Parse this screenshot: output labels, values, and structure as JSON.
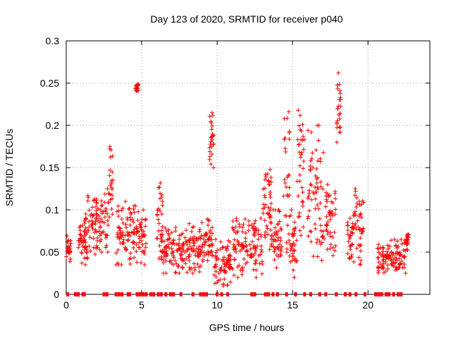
{
  "chart_data": {
    "type": "scatter",
    "title": "Day 123 of 2020, SRMTID for receiver p040",
    "xlabel": "GPS time / hours",
    "ylabel": "SRMTID / TECUs",
    "xlim": [
      0,
      24.1
    ],
    "ylim": [
      0,
      0.3
    ],
    "x_ticks": [
      0,
      5,
      10,
      15,
      20
    ],
    "x_tick_labels": [
      "0",
      "5",
      "10",
      "15",
      "20"
    ],
    "y_ticks": [
      0,
      0.05,
      0.1,
      0.15,
      0.2,
      0.25,
      0.3
    ],
    "y_tick_labels": [
      "0",
      "0.05",
      "0.1",
      "0.15",
      "0.2",
      "0.25",
      "0.3"
    ],
    "grid": true,
    "legend": "none",
    "marker": "plus",
    "color": "#ff0000",
    "clusters": [
      {
        "x": [
          0.0,
          0.3
        ],
        "y_range": [
          0.035,
          0.075
        ]
      },
      {
        "x": [
          0.8,
          1.4
        ],
        "y_range": [
          0.035,
          0.09
        ]
      },
      {
        "x": [
          1.2,
          2.0
        ],
        "y_range": [
          0.04,
          0.125
        ]
      },
      {
        "x": [
          2.0,
          2.8
        ],
        "y_range": [
          0.05,
          0.125
        ]
      },
      {
        "x": [
          2.8,
          3.1
        ],
        "y_range": [
          0.08,
          0.183
        ]
      },
      {
        "x": [
          3.3,
          4.6
        ],
        "y_range": [
          0.035,
          0.11
        ]
      },
      {
        "x": [
          4.6,
          4.8
        ],
        "y_range": [
          0.24,
          0.249
        ]
      },
      {
        "x": [
          4.6,
          5.3
        ],
        "y_range": [
          0.035,
          0.1
        ]
      },
      {
        "x": [
          6.0,
          6.4
        ],
        "y_range": [
          0.04,
          0.14
        ]
      },
      {
        "x": [
          6.3,
          8.0
        ],
        "y_range": [
          0.025,
          0.08
        ]
      },
      {
        "x": [
          8.0,
          9.2
        ],
        "y_range": [
          0.025,
          0.085
        ]
      },
      {
        "x": [
          9.2,
          9.7
        ],
        "y_range": [
          0.04,
          0.09
        ]
      },
      {
        "x": [
          9.5,
          9.8
        ],
        "y_range": [
          0.15,
          0.215
        ]
      },
      {
        "x": [
          9.8,
          11.0
        ],
        "y_range": [
          0.01,
          0.065
        ]
      },
      {
        "x": [
          11.0,
          13.0
        ],
        "y_range": [
          0.02,
          0.09
        ]
      },
      {
        "x": [
          13.0,
          13.6
        ],
        "y_range": [
          0.05,
          0.155
        ]
      },
      {
        "x": [
          13.5,
          14.3
        ],
        "y_range": [
          0.03,
          0.1
        ]
      },
      {
        "x": [
          14.4,
          14.8
        ],
        "y_range": [
          0.04,
          0.216
        ]
      },
      {
        "x": [
          14.8,
          15.3
        ],
        "y_range": [
          0.02,
          0.1
        ]
      },
      {
        "x": [
          15.3,
          15.8
        ],
        "y_range": [
          0.06,
          0.228
        ]
      },
      {
        "x": [
          16.0,
          17.1
        ],
        "y_range": [
          0.04,
          0.2
        ]
      },
      {
        "x": [
          17.2,
          17.9
        ],
        "y_range": [
          0.04,
          0.13
        ]
      },
      {
        "x": [
          17.9,
          18.2
        ],
        "y_range": [
          0.18,
          0.262
        ]
      },
      {
        "x": [
          18.6,
          19.0
        ],
        "y_range": [
          0.04,
          0.09
        ]
      },
      {
        "x": [
          19.0,
          19.7
        ],
        "y_range": [
          0.035,
          0.125
        ]
      },
      {
        "x": [
          20.6,
          22.5
        ],
        "y_range": [
          0.025,
          0.065
        ]
      },
      {
        "x": [
          22.5,
          22.7
        ],
        "y_range": [
          0.05,
          0.075
        ]
      }
    ],
    "zero_markers_x": [
      0.1,
      0.6,
      0.8,
      1.1,
      1.2,
      2.5,
      2.7,
      3.3,
      3.5,
      3.7,
      4.1,
      4.2,
      4.7,
      4.9,
      5.1,
      5.3,
      5.6,
      5.8,
      6.1,
      6.3,
      6.6,
      6.9,
      7.1,
      7.6,
      8.4,
      8.9,
      9.1,
      9.3,
      10.0,
      10.3,
      10.7,
      12.3,
      12.5,
      13.2,
      13.4,
      13.7,
      14.0,
      14.6,
      15.2,
      15.8,
      16.2,
      16.8,
      17.2,
      17.9,
      18.5,
      18.8,
      19.2,
      19.8,
      20.5,
      20.7,
      20.9,
      21.2,
      21.4,
      21.7,
      22.0,
      22.2
    ]
  }
}
